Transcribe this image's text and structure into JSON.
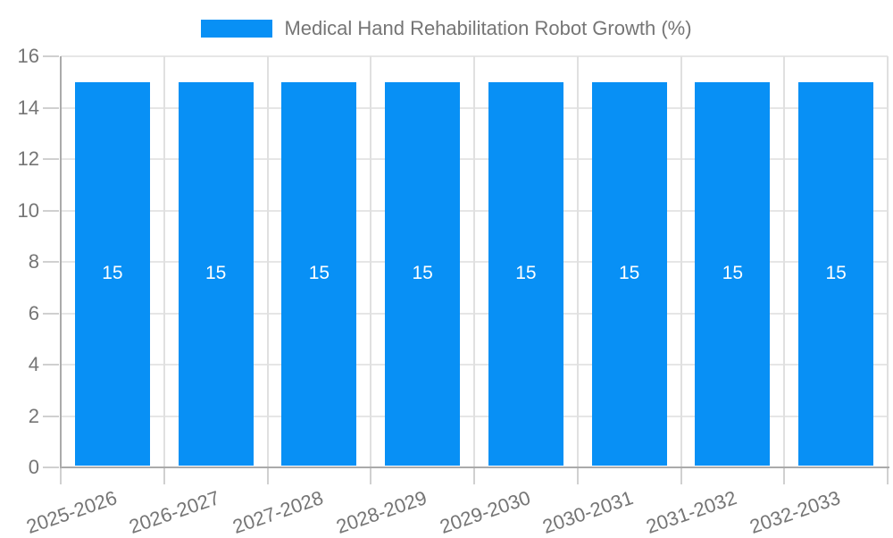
{
  "legend": {
    "label": "Medical Hand Rehabilitation Robot Growth (%)",
    "swatch_color": "#0890F5"
  },
  "chart_data": {
    "type": "bar",
    "title": "Medical Hand Rehabilitation Robot Growth (%)",
    "categories": [
      "2025-2026",
      "2026-2027",
      "2027-2028",
      "2028-2029",
      "2029-2030",
      "2030-2031",
      "2031-2032",
      "2032-2033"
    ],
    "values": [
      15,
      15,
      15,
      15,
      15,
      15,
      15,
      15
    ],
    "value_labels": [
      "15",
      "15",
      "15",
      "15",
      "15",
      "15",
      "15",
      "15"
    ],
    "xlabel": "",
    "ylabel": "",
    "ylim": [
      0,
      16
    ],
    "yticks": [
      0,
      2,
      4,
      6,
      8,
      10,
      12,
      14,
      16
    ],
    "grid": true,
    "legend_position": "top",
    "bar_color": "#0890F5",
    "value_label_color": "#FFFFFF",
    "x_tick_rotation_deg": -19,
    "bar_width_fraction": 0.727
  },
  "style_colors": {
    "background": "#FFFFFF",
    "axis": "#AAAAAA",
    "grid_horizontal": "#E6E6E6",
    "grid_vertical": "#E0E0E0",
    "tick_mark": "#D0D0D0",
    "tick_text": "#757575",
    "legend_text": "#757575"
  }
}
